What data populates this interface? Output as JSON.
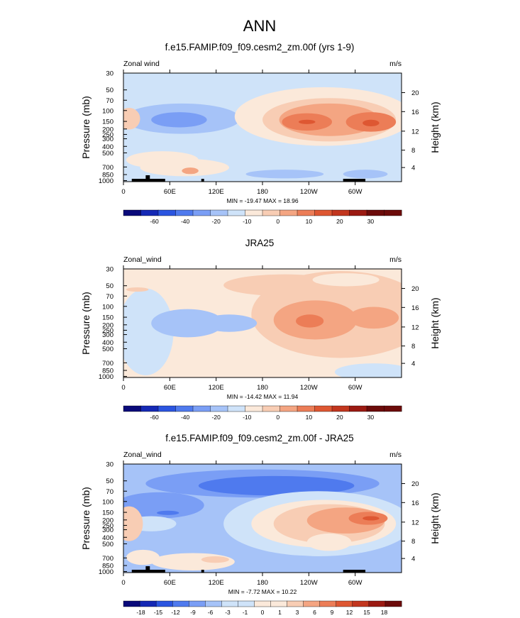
{
  "page_title": "ANN",
  "chart_data": [
    {
      "type": "heatmap",
      "subtype": "filled-contour",
      "title": "f.e15.FAMIP.f09_f09.cesm2_zm.00f (yrs 1-9)",
      "variable_label": "Zonal wind",
      "units": "m/s",
      "ylabel": "Pressure (mb)",
      "ylabel_right": "Height (km)",
      "xlabel": "",
      "x_ticks": [
        "0",
        "60E",
        "120E",
        "180",
        "120W",
        "60W"
      ],
      "y_ticks": [
        "30",
        "50",
        "70",
        "100",
        "150",
        "200",
        "250",
        "300",
        "400",
        "500",
        "700",
        "850",
        "1000"
      ],
      "height_ticks": [
        "20",
        "16",
        "12",
        "8",
        "4"
      ],
      "min": -19.47,
      "max": 18.96,
      "stats_label": "MIN = -19.47  MAX = 18.96",
      "colorbar_labels": [
        "-60",
        "-40",
        "-20",
        "-10",
        "0",
        "10",
        "20",
        "30"
      ],
      "topography": true
    },
    {
      "type": "heatmap",
      "subtype": "filled-contour",
      "title": "JRA25",
      "variable_label": "Zonal_wind",
      "units": "m/s",
      "ylabel": "Pressure (mb)",
      "ylabel_right": "Height (km)",
      "xlabel": "",
      "x_ticks": [
        "0",
        "60E",
        "120E",
        "180",
        "120W",
        "60W"
      ],
      "y_ticks": [
        "30",
        "50",
        "70",
        "100",
        "150",
        "200",
        "250",
        "300",
        "400",
        "500",
        "700",
        "850",
        "1000"
      ],
      "height_ticks": [
        "20",
        "16",
        "12",
        "8",
        "4"
      ],
      "min": -14.42,
      "max": 11.94,
      "stats_label": "MIN = -14.42  MAX = 11.94",
      "colorbar_labels": [
        "-60",
        "-40",
        "-20",
        "-10",
        "0",
        "10",
        "20",
        "30"
      ],
      "topography": false
    },
    {
      "type": "heatmap",
      "subtype": "filled-contour",
      "title": "f.e15.FAMIP.f09_f09.cesm2_zm.00f - JRA25",
      "variable_label": "Zonal_wind",
      "units": "m/s",
      "ylabel": "Pressure (mb)",
      "ylabel_right": "Height (km)",
      "xlabel": "",
      "x_ticks": [
        "0",
        "60E",
        "120E",
        "180",
        "120W",
        "60W"
      ],
      "y_ticks": [
        "30",
        "50",
        "70",
        "100",
        "150",
        "200",
        "250",
        "300",
        "400",
        "500",
        "700",
        "850",
        "1000"
      ],
      "height_ticks": [
        "20",
        "16",
        "12",
        "8",
        "4"
      ],
      "min": -7.72,
      "max": 10.22,
      "stats_label": "MIN = -7.72  MAX = 10.22",
      "colorbar_labels": [
        "-18",
        "-15",
        "-12",
        "-9",
        "-6",
        "-3",
        "-1",
        "0",
        "1",
        "3",
        "6",
        "9",
        "12",
        "15",
        "18"
      ],
      "topography": true
    }
  ],
  "colors": {
    "c0": "#0a0a7a",
    "c1": "#1529b5",
    "c2": "#2b55e0",
    "c3": "#4f7aee",
    "c4": "#7a9ef5",
    "c5": "#a6c3f8",
    "c6": "#cfe3f9",
    "c7": "#fbe9da",
    "c8": "#f8cdb4",
    "c9": "#f4a582",
    "c10": "#ec7d57",
    "c11": "#de5732",
    "c12": "#c2361e",
    "c13": "#9b1a12",
    "c14": "#6c0b0a",
    "topography": "#000000"
  }
}
